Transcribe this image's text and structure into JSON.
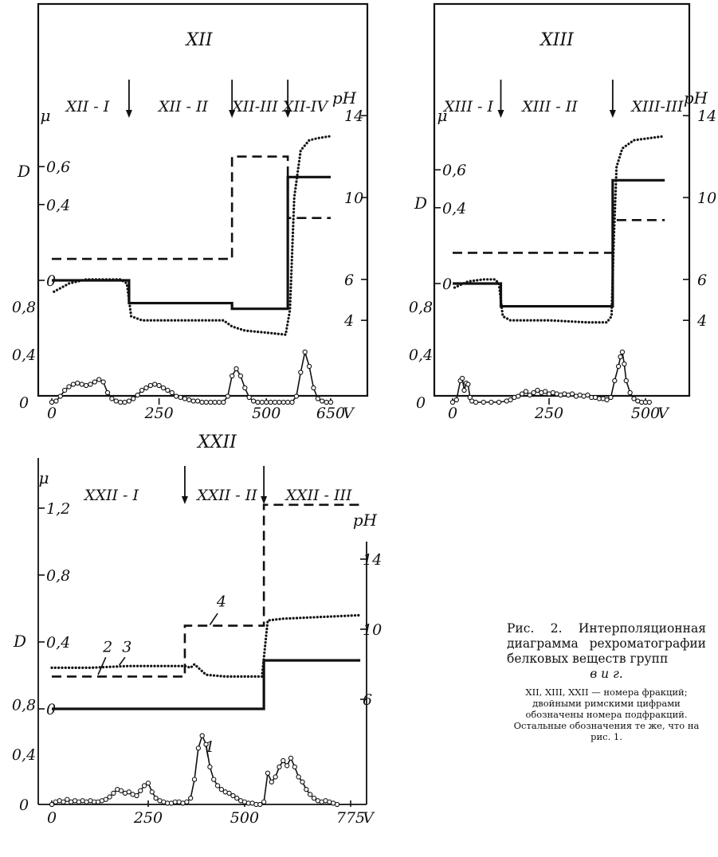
{
  "caption": {
    "main": "Рис. 2. Интерполяционная диаграмма рехроматографии белковых веществ групп",
    "groups": "в и г.",
    "note": "XII, XIII, XXII — номера фракций; двойными римскими цифрами обозначены номера подфракций. Остальные обозначения те же, что на рис. 1."
  },
  "chart_data": [
    {
      "type": "line",
      "panel": "XII",
      "title": "XII",
      "subfractions": [
        "XII - I",
        "XII - II",
        "XII-III",
        "XII-IV"
      ],
      "fraction_boundaries": [
        180,
        420,
        550
      ],
      "x_axis": {
        "label": "V",
        "ticks": [
          "0",
          "250",
          "500",
          "650"
        ],
        "range": [
          -25,
          660
        ]
      },
      "axis_labels": {
        "D": "D",
        "mu": "μ",
        "pH": "pH"
      },
      "D_axis": {
        "ticks": [
          "0",
          "0,4",
          "0,8"
        ],
        "range": [
          0,
          1.2
        ]
      },
      "mu_axis": {
        "ticks": [
          "0",
          "0,4",
          "0,6"
        ],
        "range": [
          0,
          0.7
        ]
      },
      "pH_axis": {
        "ticks": [
          "4",
          "6",
          "10",
          "14"
        ],
        "range": [
          0,
          15
        ]
      },
      "series": [
        {
          "style": "solid",
          "quantity": "ionic strength μ",
          "x": [
            0,
            180,
            180,
            420,
            420,
            550,
            550,
            650
          ],
          "y": [
            0,
            0,
            -0.12,
            -0.12,
            -0.15,
            -0.15,
            0.545,
            0.545
          ]
        },
        {
          "style": "dashed",
          "quantity": "pH",
          "x": [
            0,
            420,
            420,
            550,
            550,
            650
          ],
          "y": [
            7,
            7,
            12,
            12,
            9,
            9
          ]
        },
        {
          "style": "dotted",
          "quantity": "pH (measured)",
          "x": [
            5,
            40,
            80,
            120,
            160,
            175,
            185,
            210,
            300,
            400,
            420,
            450,
            500,
            545,
            555,
            565,
            580,
            600,
            620,
            650
          ],
          "y": [
            5.4,
            5.8,
            6.0,
            6.0,
            6.0,
            5.8,
            4.2,
            4.0,
            4.0,
            4.0,
            3.7,
            3.5,
            3.4,
            3.3,
            4.5,
            10,
            12.3,
            12.8,
            12.9,
            13.0
          ]
        },
        {
          "style": "line-with-open-circles",
          "quantity": "optical density D",
          "x": [
            0,
            10,
            20,
            30,
            40,
            50,
            60,
            70,
            80,
            90,
            100,
            110,
            120,
            130,
            140,
            150,
            160,
            170,
            180,
            190,
            200,
            210,
            220,
            230,
            240,
            250,
            260,
            270,
            280,
            290,
            300,
            310,
            320,
            330,
            340,
            350,
            360,
            370,
            380,
            390,
            400,
            410,
            420,
            430,
            440,
            450,
            460,
            470,
            480,
            490,
            500,
            510,
            520,
            530,
            540,
            550,
            560,
            570,
            580,
            590,
            600,
            610,
            620,
            630,
            640,
            650
          ],
          "y": [
            0,
            0.01,
            0.05,
            0.1,
            0.13,
            0.15,
            0.16,
            0.15,
            0.14,
            0.15,
            0.17,
            0.19,
            0.17,
            0.08,
            0.03,
            0.01,
            0.0,
            0.0,
            0.01,
            0.03,
            0.06,
            0.1,
            0.12,
            0.14,
            0.15,
            0.14,
            0.12,
            0.1,
            0.08,
            0.05,
            0.04,
            0.03,
            0.02,
            0.01,
            0.01,
            0.0,
            0.0,
            0.0,
            0.0,
            0.0,
            0.0,
            0.05,
            0.22,
            0.28,
            0.22,
            0.12,
            0.04,
            0.01,
            0.0,
            0.0,
            0.0,
            0.0,
            0.0,
            0.0,
            0.0,
            0.0,
            0.0,
            0.05,
            0.25,
            0.42,
            0.3,
            0.12,
            0.03,
            0.01,
            0.0,
            0.0
          ]
        }
      ]
    },
    {
      "type": "line",
      "panel": "XIII",
      "title": "XIII",
      "subfractions": [
        "XIII - I",
        "XIII - II",
        "XIII-III"
      ],
      "fraction_boundaries": [
        125,
        415
      ],
      "x_axis": {
        "label": "V",
        "ticks": [
          "0",
          "250",
          "500"
        ],
        "range": [
          -25,
          550
        ]
      },
      "axis_labels": {
        "D": "D",
        "mu": "μ",
        "pH": "pH"
      },
      "D_axis": {
        "ticks": [
          "0",
          "0,4",
          "0,8"
        ],
        "range": [
          0,
          1.2
        ]
      },
      "mu_axis": {
        "ticks": [
          "0",
          "0,4",
          "0,6"
        ],
        "range": [
          0,
          0.7
        ]
      },
      "pH_axis": {
        "ticks": [
          "4",
          "6",
          "10",
          "14"
        ],
        "range": [
          0,
          15
        ]
      },
      "series": [
        {
          "style": "solid",
          "quantity": "ionic strength μ",
          "x": [
            0,
            125,
            125,
            415,
            415,
            550
          ],
          "y": [
            0,
            0,
            -0.12,
            -0.12,
            0.545,
            0.545
          ]
        },
        {
          "style": "dashed",
          "quantity": "pH",
          "x": [
            0,
            415,
            415,
            550
          ],
          "y": [
            7.3,
            7.3,
            8.9,
            8.9
          ]
        },
        {
          "style": "dotted",
          "quantity": "pH (measured)",
          "x": [
            5,
            40,
            80,
            110,
            120,
            130,
            150,
            250,
            350,
            400,
            412,
            418,
            425,
            440,
            470,
            510,
            550
          ],
          "y": [
            5.6,
            5.9,
            6.0,
            6.0,
            5.8,
            4.2,
            4.0,
            4.0,
            3.9,
            3.9,
            4.2,
            8,
            11.5,
            12.4,
            12.8,
            12.9,
            13.0
          ]
        },
        {
          "style": "line-with-open-circles",
          "quantity": "optical density D",
          "x": [
            0,
            10,
            20,
            25,
            30,
            35,
            40,
            45,
            50,
            60,
            80,
            100,
            120,
            140,
            150,
            160,
            170,
            180,
            190,
            200,
            210,
            220,
            230,
            240,
            250,
            260,
            270,
            280,
            290,
            300,
            310,
            320,
            330,
            340,
            350,
            360,
            370,
            380,
            390,
            400,
            410,
            420,
            430,
            435,
            440,
            445,
            450,
            460,
            470,
            480,
            490,
            500,
            510
          ],
          "y": [
            0,
            0.02,
            0.18,
            0.2,
            0.1,
            0.16,
            0.15,
            0.04,
            0.01,
            0.0,
            0.0,
            0.0,
            0.0,
            0.01,
            0.02,
            0.04,
            0.05,
            0.07,
            0.09,
            0.06,
            0.08,
            0.1,
            0.08,
            0.09,
            0.07,
            0.08,
            0.07,
            0.06,
            0.07,
            0.06,
            0.07,
            0.05,
            0.06,
            0.05,
            0.06,
            0.04,
            0.04,
            0.03,
            0.03,
            0.02,
            0.04,
            0.18,
            0.3,
            0.38,
            0.42,
            0.32,
            0.18,
            0.08,
            0.03,
            0.01,
            0.0,
            0.0,
            0.0
          ]
        }
      ]
    },
    {
      "type": "line",
      "panel": "XXII",
      "title": "XXII",
      "subfractions": [
        "XXII - I",
        "XXII - II",
        "XXII - III"
      ],
      "fraction_boundaries": [
        345,
        550
      ],
      "x_axis": {
        "label": "V",
        "ticks": [
          "0",
          "250",
          "500",
          "775"
        ],
        "range": [
          -25,
          800
        ]
      },
      "axis_labels": {
        "D": "D",
        "mu": "μ",
        "pH": "pH"
      },
      "D_axis": {
        "ticks": [
          "0",
          "0,4",
          "0,8"
        ],
        "range": [
          0,
          1.3
        ]
      },
      "mu_axis": {
        "ticks": [
          "0",
          "0,4",
          "0,8",
          "1,2"
        ],
        "range": [
          0,
          1.3
        ]
      },
      "pH_axis": {
        "ticks": [
          "6",
          "10",
          "14"
        ],
        "range": [
          3,
          17
        ]
      },
      "curve_labels": [
        "1",
        "2",
        "3",
        "4"
      ],
      "series": [
        {
          "style": "solid",
          "label": "2",
          "quantity": "ionic strength μ",
          "x": [
            0,
            345,
            345,
            550,
            550,
            800
          ],
          "y": [
            0,
            0,
            0,
            0,
            0.29,
            0.29
          ]
        },
        {
          "style": "dashed",
          "label": "4",
          "quantity": "pH",
          "x": [
            0,
            345,
            345,
            550,
            550,
            800
          ],
          "y": [
            7.3,
            7.3,
            10.2,
            10.2,
            17.1,
            17.1
          ]
        },
        {
          "style": "dotted",
          "label": "3",
          "quantity": "pH (measured)",
          "x": [
            0,
            100,
            200,
            300,
            345,
            360,
            370,
            380,
            400,
            450,
            545,
            560,
            600,
            700,
            800
          ],
          "y": [
            7.8,
            7.8,
            7.9,
            7.9,
            7.9,
            7.8,
            8.0,
            7.8,
            7.4,
            7.3,
            7.3,
            10.5,
            10.6,
            10.7,
            10.8
          ]
        },
        {
          "style": "line-with-open-circles",
          "label": "1",
          "quantity": "optical density D",
          "x": [
            0,
            10,
            20,
            30,
            40,
            50,
            60,
            70,
            80,
            90,
            100,
            110,
            120,
            130,
            140,
            150,
            160,
            170,
            180,
            190,
            200,
            210,
            220,
            230,
            240,
            250,
            260,
            270,
            280,
            290,
            300,
            310,
            320,
            330,
            340,
            350,
            360,
            370,
            380,
            390,
            400,
            410,
            420,
            430,
            440,
            450,
            460,
            470,
            480,
            490,
            500,
            510,
            520,
            530,
            540,
            550,
            560,
            570,
            580,
            590,
            600,
            610,
            620,
            630,
            640,
            650,
            660,
            670,
            680,
            690,
            700,
            710,
            720,
            730,
            740
          ],
          "y": [
            0,
            0.02,
            0.03,
            0.02,
            0.04,
            0.02,
            0.03,
            0.02,
            0.03,
            0.02,
            0.03,
            0.02,
            0.02,
            0.03,
            0.04,
            0.06,
            0.09,
            0.12,
            0.11,
            0.09,
            0.1,
            0.08,
            0.07,
            0.11,
            0.15,
            0.17,
            0.1,
            0.05,
            0.03,
            0.02,
            0.01,
            0.01,
            0.02,
            0.02,
            0.01,
            0.02,
            0.05,
            0.2,
            0.45,
            0.55,
            0.48,
            0.3,
            0.2,
            0.15,
            0.12,
            0.1,
            0.09,
            0.07,
            0.05,
            0.03,
            0.02,
            0.01,
            0.01,
            0.0,
            0.0,
            0.02,
            0.25,
            0.18,
            0.22,
            0.3,
            0.35,
            0.31,
            0.37,
            0.3,
            0.22,
            0.18,
            0.12,
            0.08,
            0.05,
            0.03,
            0.02,
            0.03,
            0.02,
            0.01,
            0.0
          ]
        }
      ]
    }
  ]
}
